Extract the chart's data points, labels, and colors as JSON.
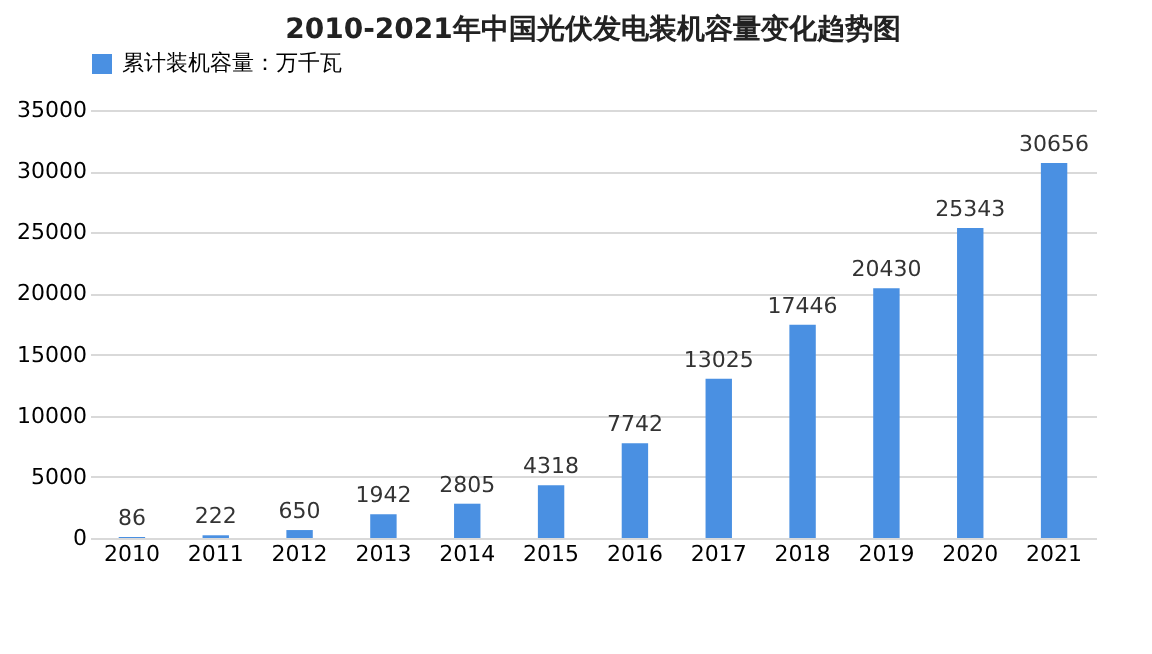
{
  "chart_data": {
    "type": "bar",
    "title": "2010-2021年中国光伏发电装机容量变化趋势图",
    "categories": [
      "2010",
      "2011",
      "2012",
      "2013",
      "2014",
      "2015",
      "2016",
      "2017",
      "2018",
      "2019",
      "2020",
      "2021"
    ],
    "series": [
      {
        "name": "累计装机容量：万千瓦",
        "color": "#4a90e2",
        "values": [
          86,
          222,
          650,
          1942,
          2805,
          4318,
          7742,
          13025,
          17446,
          20430,
          25343,
          30656
        ]
      }
    ],
    "ylim": [
      0,
      35000
    ],
    "yticks": [
      0,
      5000,
      10000,
      15000,
      20000,
      25000,
      30000,
      35000
    ],
    "grid": "y",
    "legend": "top",
    "data_labels": true
  }
}
